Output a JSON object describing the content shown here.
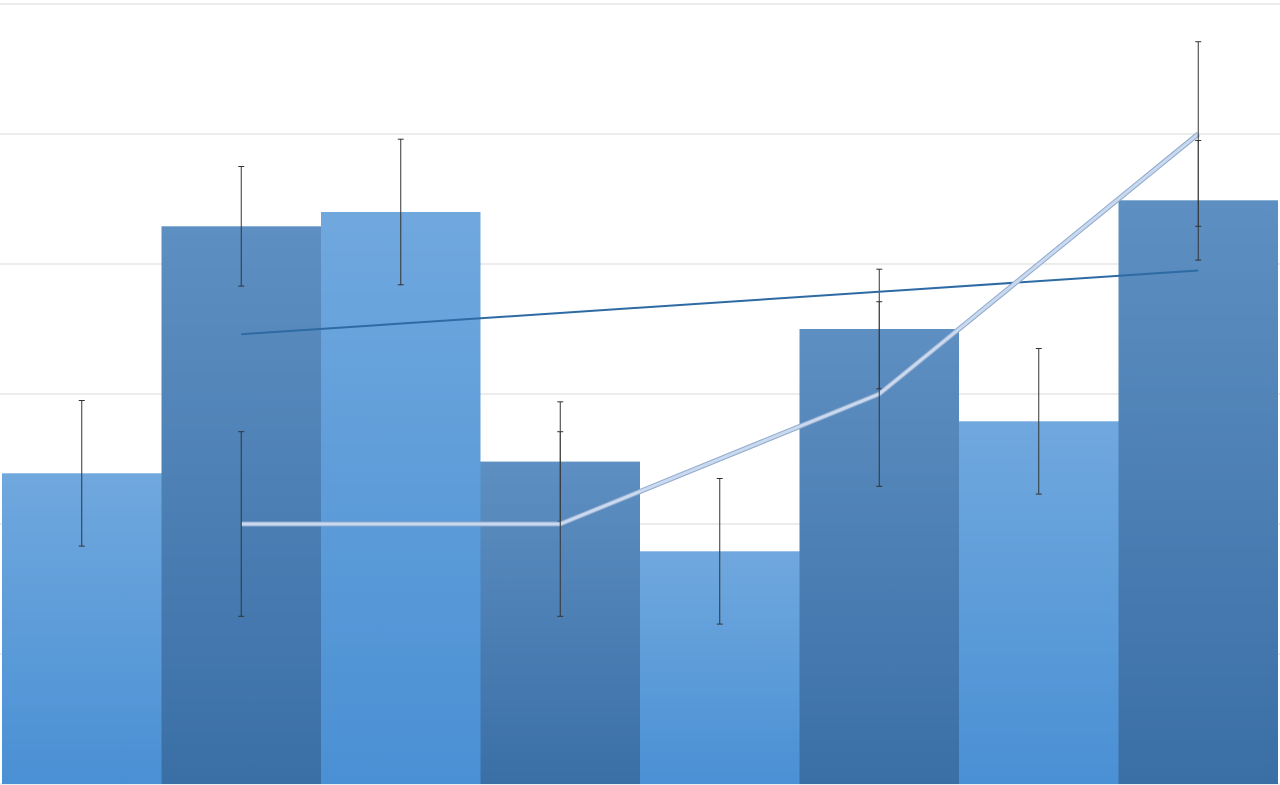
{
  "chart_data": {
    "type": "bar",
    "title": "",
    "xlabel": "",
    "ylabel": "",
    "ylim": [
      0,
      6
    ],
    "grid": true,
    "categories": [
      "",
      "",
      "",
      "",
      "",
      "",
      "",
      ""
    ],
    "bars": {
      "values": [
        2.39,
        4.29,
        4.4,
        2.48,
        1.79,
        3.5,
        2.79,
        4.49
      ],
      "errors": [
        0.56,
        0.46,
        0.56,
        0.46,
        0.56,
        0.46,
        0.56,
        0.46
      ],
      "colors_light": [
        "#70a8de",
        "#4a90d4"
      ],
      "colors_dark": [
        "#5e8fc2",
        "#3a6fa6"
      ]
    },
    "line": {
      "x": [
        1.5,
        3.5,
        5.5,
        7.5
      ],
      "values": [
        2,
        2,
        3,
        5
      ],
      "errors": [
        0.71,
        0.71,
        0.71,
        0.71
      ],
      "color": "#c9d9ef"
    },
    "trendline": {
      "x": [
        1.5,
        7.5
      ],
      "values": [
        3.46,
        3.95
      ],
      "color": "#2e6aa3"
    },
    "gridline_color": "#d9d9d9",
    "errorbar_color": "#333333"
  }
}
